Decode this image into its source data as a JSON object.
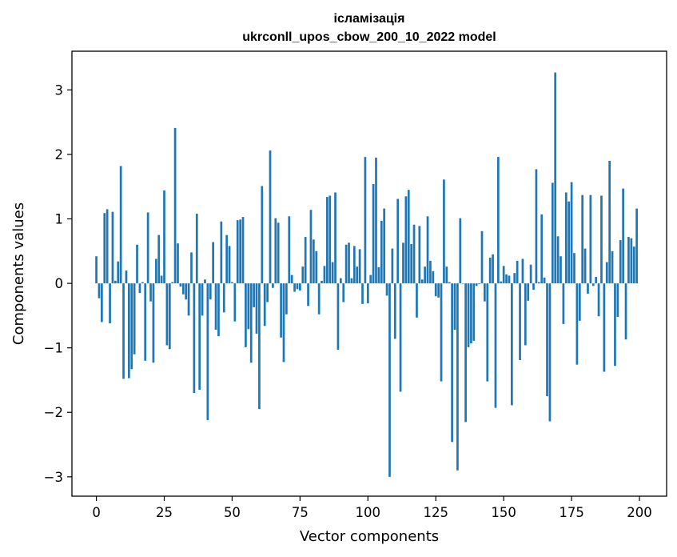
{
  "chart_data": {
    "type": "bar",
    "title": [
      "ісламізація",
      "ukrconll_upos_cbow_200_10_2022 model"
    ],
    "xlabel": "Vector components",
    "ylabel": "Components values",
    "xlim": [
      -9,
      210
    ],
    "ylim": [
      -3.3,
      3.6
    ],
    "xticks": [
      0,
      25,
      50,
      75,
      100,
      125,
      150,
      175,
      200
    ],
    "yticks": [
      -3,
      -2,
      -1,
      0,
      1,
      2,
      3
    ],
    "grid": false,
    "legend": "none",
    "color": "#1f77b4",
    "x": [
      0,
      1,
      2,
      3,
      4,
      5,
      6,
      7,
      8,
      9,
      10,
      11,
      12,
      13,
      14,
      15,
      16,
      17,
      18,
      19,
      20,
      21,
      22,
      23,
      24,
      25,
      26,
      27,
      28,
      29,
      30,
      31,
      32,
      33,
      34,
      35,
      36,
      37,
      38,
      39,
      40,
      41,
      42,
      43,
      44,
      45,
      46,
      47,
      48,
      49,
      50,
      51,
      52,
      53,
      54,
      55,
      56,
      57,
      58,
      59,
      60,
      61,
      62,
      63,
      64,
      65,
      66,
      67,
      68,
      69,
      70,
      71,
      72,
      73,
      74,
      75,
      76,
      77,
      78,
      79,
      80,
      81,
      82,
      83,
      84,
      85,
      86,
      87,
      88,
      89,
      90,
      91,
      92,
      93,
      94,
      95,
      96,
      97,
      98,
      99,
      100,
      101,
      102,
      103,
      104,
      105,
      106,
      107,
      108,
      109,
      110,
      111,
      112,
      113,
      114,
      115,
      116,
      117,
      118,
      119,
      120,
      121,
      122,
      123,
      124,
      125,
      126,
      127,
      128,
      129,
      130,
      131,
      132,
      133,
      134,
      135,
      136,
      137,
      138,
      139,
      140,
      141,
      142,
      143,
      144,
      145,
      146,
      147,
      148,
      149,
      150,
      151,
      152,
      153,
      154,
      155,
      156,
      157,
      158,
      159,
      160,
      161,
      162,
      163,
      164,
      165,
      166,
      167,
      168,
      169,
      170,
      171,
      172,
      173,
      174,
      175,
      176,
      177,
      178,
      179,
      180,
      181,
      182,
      183,
      184,
      185,
      186,
      187,
      188,
      189,
      190,
      191,
      192,
      193,
      194,
      195,
      196,
      197,
      198,
      199
    ],
    "values": [
      0.42,
      -0.23,
      -0.6,
      1.09,
      1.15,
      -0.62,
      1.11,
      0.04,
      0.34,
      1.82,
      -1.48,
      0.2,
      -1.47,
      -1.33,
      -1.1,
      0.6,
      -0.15,
      0.02,
      -1.2,
      1.1,
      -0.28,
      -1.23,
      0.38,
      0.75,
      0.12,
      1.44,
      -0.96,
      -1.02,
      0.02,
      2.41,
      0.62,
      -0.05,
      -0.17,
      -0.25,
      -0.5,
      0.48,
      -1.7,
      1.08,
      -1.65,
      -0.5,
      0.06,
      -2.12,
      -0.25,
      0.64,
      -0.72,
      -0.82,
      0.96,
      -0.45,
      0.75,
      0.58,
      0.02,
      -0.59,
      0.98,
      0.99,
      1.03,
      -0.99,
      -0.71,
      -1.23,
      -0.37,
      -0.78,
      -1.95,
      1.51,
      -0.66,
      -0.29,
      2.06,
      -0.07,
      1.01,
      0.94,
      -0.84,
      -1.22,
      -0.48,
      1.04,
      0.13,
      -0.13,
      -0.09,
      -0.11,
      0.26,
      0.72,
      -0.35,
      1.14,
      0.68,
      0.5,
      -0.48,
      0.04,
      0.27,
      1.34,
      1.36,
      0.33,
      1.41,
      -1.03,
      0.08,
      -0.29,
      0.6,
      0.63,
      0.08,
      0.58,
      0.26,
      0.53,
      -0.32,
      1.96,
      -0.31,
      0.13,
      1.54,
      1.95,
      0.25,
      0.97,
      1.16,
      -0.19,
      -3.0,
      0.54,
      -0.86,
      1.31,
      -1.68,
      0.63,
      1.35,
      1.45,
      0.61,
      0.91,
      -0.53,
      0.89,
      0.06,
      0.26,
      1.04,
      0.35,
      0.19,
      -0.2,
      -0.22,
      -1.52,
      1.61,
      0.26,
      0.02,
      -2.46,
      -0.72,
      -2.9,
      1.01,
      0.0,
      -2.15,
      -0.99,
      -0.93,
      -0.89,
      -0.04,
      -0.01,
      0.81,
      -0.28,
      -1.52,
      0.4,
      0.45,
      -1.93,
      1.96,
      0.03,
      0.27,
      0.14,
      0.12,
      -1.89,
      0.16,
      0.35,
      -1.19,
      0.38,
      -0.96,
      -0.27,
      0.29,
      -0.1,
      1.77,
      0.02,
      1.07,
      0.09,
      -1.75,
      -2.14,
      1.56,
      3.27,
      0.73,
      0.42,
      -0.63,
      1.41,
      1.27,
      1.57,
      0.47,
      -1.26,
      -0.58,
      1.37,
      0.54,
      -0.16,
      1.37,
      -0.04,
      0.1,
      -0.51,
      1.36,
      -1.37,
      0.33,
      1.9,
      0.5,
      -1.28,
      -0.52,
      0.67,
      1.47,
      -0.87,
      0.72,
      0.7,
      0.57,
      1.16
    ]
  }
}
